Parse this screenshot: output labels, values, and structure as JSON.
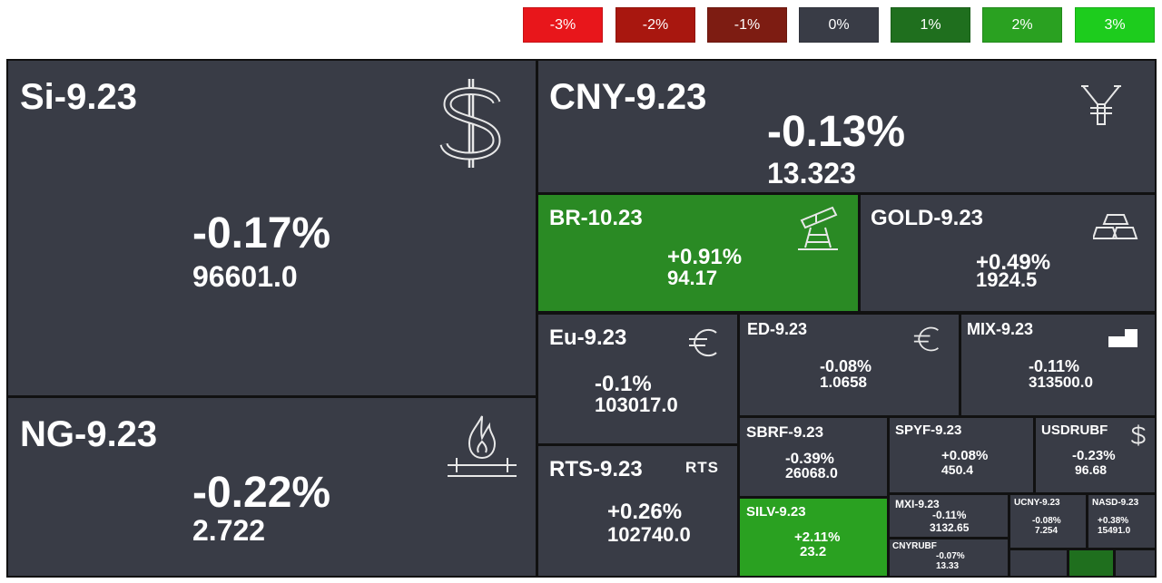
{
  "legend": [
    {
      "label": "-3%",
      "color": "#e8161b"
    },
    {
      "label": "-2%",
      "color": "#a8170f"
    },
    {
      "label": "-1%",
      "color": "#7d1c12"
    },
    {
      "label": "0%",
      "color": "#393c46"
    },
    {
      "label": "1%",
      "color": "#1f6f1e"
    },
    {
      "label": "2%",
      "color": "#2aa121"
    },
    {
      "label": "3%",
      "color": "#1dcc1d"
    }
  ],
  "tiles": {
    "si": {
      "ticker": "Si-9.23",
      "change": "-0.17%",
      "price": "96601.0",
      "icon": "dollar-icon"
    },
    "ng": {
      "ticker": "NG-9.23",
      "change": "-0.22%",
      "price": "2.722",
      "icon": "gas-flame-icon"
    },
    "cny": {
      "ticker": "CNY-9.23",
      "change": "-0.13%",
      "price": "13.323",
      "icon": "yuan-icon"
    },
    "br": {
      "ticker": "BR-10.23",
      "change": "+0.91%",
      "price": "94.17",
      "icon": "oil-rig-icon"
    },
    "gold": {
      "ticker": "GOLD-9.23",
      "change": "+0.49%",
      "price": "1924.5",
      "icon": "gold-bars-icon"
    },
    "eu": {
      "ticker": "Eu-9.23",
      "change": "-0.1%",
      "price": "103017.0",
      "icon": "euro-icon"
    },
    "ed": {
      "ticker": "ED-9.23",
      "change": "-0.08%",
      "price": "1.0658",
      "icon": "euro-icon"
    },
    "mix": {
      "ticker": "MIX-9.23",
      "change": "-0.11%",
      "price": "313500.0",
      "icon": "moex-icon"
    },
    "rts": {
      "ticker": "RTS-9.23",
      "change": "+0.26%",
      "price": "102740.0",
      "icon_text": "RTS"
    },
    "sbrf": {
      "ticker": "SBRF-9.23",
      "change": "-0.39%",
      "price": "26068.0"
    },
    "spyf": {
      "ticker": "SPYF-9.23",
      "change": "+0.08%",
      "price": "450.4"
    },
    "usdrubf": {
      "ticker": "USDRUBF",
      "change": "-0.23%",
      "price": "96.68",
      "icon": "dollar-icon"
    },
    "silv": {
      "ticker": "SILV-9.23",
      "change": "+2.11%",
      "price": "23.2"
    },
    "mxi": {
      "ticker": "MXI-9.23",
      "change": "-0.11%",
      "price": "3132.65"
    },
    "ucny": {
      "ticker": "UCNY-9.23",
      "change": "-0.08%",
      "price": "7.254"
    },
    "nasd": {
      "ticker": "NASD-9.23",
      "change": "+0.38%",
      "price": "15491.0"
    },
    "cnyrubf": {
      "ticker": "CNYRUBF",
      "change": "-0.07%",
      "price": "13.33"
    }
  }
}
